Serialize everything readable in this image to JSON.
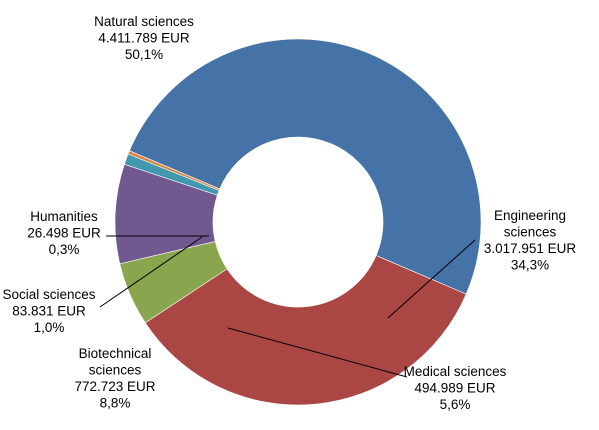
{
  "chart_data": {
    "type": "pie",
    "variant": "donut",
    "title": "",
    "currency": "EUR",
    "slices": [
      {
        "label": "Natural sciences",
        "value": 4411789,
        "value_text": "4.411.789 EUR",
        "percent_text": "50,1%",
        "color": "#4572A7"
      },
      {
        "label": "Engineering sciences",
        "value": 3017951,
        "value_text": "3.017.951 EUR",
        "percent_text": "34,3%",
        "color": "#AA4643"
      },
      {
        "label": "Medical sciences",
        "value": 494989,
        "value_text": "494.989 EUR",
        "percent_text": "5,6%",
        "color": "#89A54E"
      },
      {
        "label": "Biotechnical sciences",
        "value": 772723,
        "value_text": "772.723 EUR",
        "percent_text": "8,8%",
        "color": "#71588F"
      },
      {
        "label": "Social sciences",
        "value": 83831,
        "value_text": "83.831 EUR",
        "percent_text": "1,0%",
        "color": "#4198AF"
      },
      {
        "label": "Humanities",
        "value": 26498,
        "value_text": "26.498 EUR",
        "percent_text": "0,3%",
        "color": "#DB843D"
      }
    ]
  }
}
